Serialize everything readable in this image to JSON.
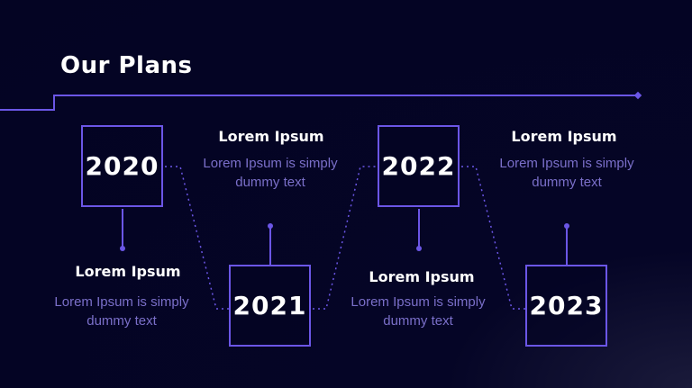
{
  "title": "Our Plans",
  "milestones": [
    {
      "year": "2020",
      "heading": "Lorem Ipsum",
      "text": "Lorem Ipsum is simply dummy text"
    },
    {
      "year": "2021",
      "heading": "Lorem Ipsum",
      "text": "Lorem Ipsum is simply dummy text"
    },
    {
      "year": "2022",
      "heading": "Lorem Ipsum",
      "text": "Lorem Ipsum is simply dummy text"
    },
    {
      "year": "2023",
      "heading": "Lorem Ipsum",
      "text": "Lorem Ipsum is simply dummy text"
    }
  ],
  "colors": {
    "background": "#040423",
    "accent": "#6b56e6",
    "heading": "#ffffff",
    "body_text": "#7a6fc9"
  }
}
